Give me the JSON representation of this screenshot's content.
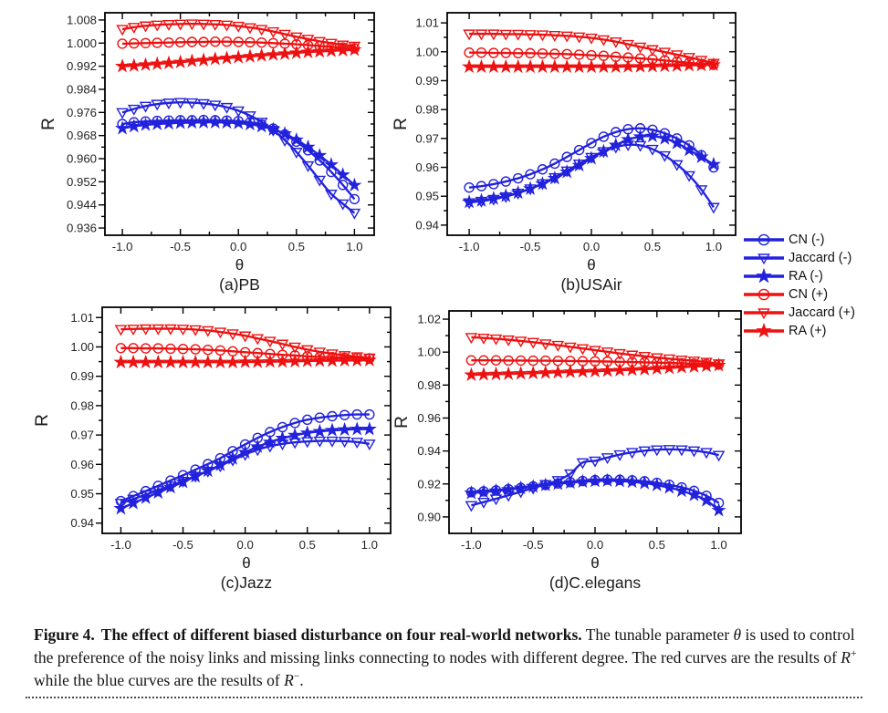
{
  "colors": {
    "blue": "#2222dd",
    "red": "#ee1111",
    "axis": "#000000",
    "tick_text": "#242424"
  },
  "legend": {
    "items": [
      {
        "label": "CN (-)",
        "color": "blue",
        "marker": "circle"
      },
      {
        "label": "Jaccard (-)",
        "color": "blue",
        "marker": "triangle"
      },
      {
        "label": "RA (-)",
        "color": "blue",
        "marker": "star"
      },
      {
        "label": "CN (+)",
        "color": "red",
        "marker": "circle"
      },
      {
        "label": "Jaccard (+)",
        "color": "red",
        "marker": "triangle"
      },
      {
        "label": "RA (+)",
        "color": "red",
        "marker": "star"
      }
    ]
  },
  "chart_data": [
    {
      "type": "line",
      "title": "(a)PB",
      "xlabel": "θ",
      "ylabel": "R",
      "xlim": [
        -1.15,
        1.17
      ],
      "ylim": [
        0.9335,
        1.0105
      ],
      "xtick_labels": [
        "-1.0",
        "-0.5",
        "0.0",
        "0.5",
        "1.0"
      ],
      "ytick_labels": [
        "0.936",
        "0.944",
        "0.952",
        "0.960",
        "0.968",
        "0.976",
        "0.984",
        "0.992",
        "1.000",
        "1.008"
      ],
      "x": [
        -1.0,
        -0.9,
        -0.8,
        -0.7,
        -0.6,
        -0.5,
        -0.4,
        -0.3,
        -0.2,
        -0.1,
        0.0,
        0.1,
        0.2,
        0.3,
        0.4,
        0.5,
        0.6,
        0.7,
        0.8,
        0.9,
        1.0
      ],
      "series": [
        {
          "name": "CN (-)",
          "color": "blue",
          "marker": "circle",
          "y": [
            0.972,
            0.9726,
            0.9729,
            0.9731,
            0.9732,
            0.9733,
            0.9733,
            0.9734,
            0.9733,
            0.9732,
            0.973,
            0.9726,
            0.9718,
            0.9704,
            0.9684,
            0.9659,
            0.9629,
            0.9594,
            0.9554,
            0.9509,
            0.946
          ]
        },
        {
          "name": "Jaccard (-)",
          "color": "blue",
          "marker": "triangle",
          "y": [
            0.976,
            0.9772,
            0.9782,
            0.9789,
            0.9793,
            0.9795,
            0.9794,
            0.9791,
            0.9786,
            0.9778,
            0.9766,
            0.9749,
            0.9727,
            0.9699,
            0.9664,
            0.9623,
            0.9576,
            0.9526,
            0.9478,
            0.9444,
            0.9412
          ]
        },
        {
          "name": "RA (-)",
          "color": "blue",
          "marker": "star",
          "y": [
            0.9705,
            0.9712,
            0.9717,
            0.972,
            0.9722,
            0.9724,
            0.9725,
            0.9726,
            0.9726,
            0.9725,
            0.9723,
            0.9719,
            0.9712,
            0.9701,
            0.9686,
            0.9665,
            0.964,
            0.9611,
            0.9579,
            0.9544,
            0.9508
          ]
        },
        {
          "name": "CN (+)",
          "color": "red",
          "marker": "circle",
          "y": [
            0.9998,
            0.9999,
            1.0,
            1.0001,
            1.0002,
            1.0003,
            1.0004,
            1.0004,
            1.0005,
            1.0005,
            1.0004,
            1.0003,
            1.0002,
            1.0,
            0.9998,
            0.9996,
            0.9993,
            0.999,
            0.9987,
            0.9985,
            0.9982
          ]
        },
        {
          "name": "Jaccard (+)",
          "color": "red",
          "marker": "triangle",
          "y": [
            1.0048,
            1.0055,
            1.006,
            1.0063,
            1.0065,
            1.0066,
            1.0067,
            1.0066,
            1.0065,
            1.0063,
            1.0059,
            1.0054,
            1.0048,
            1.004,
            1.0031,
            1.0022,
            1.0014,
            1.0006,
            1.0,
            0.9994,
            0.999
          ]
        },
        {
          "name": "RA (+)",
          "color": "red",
          "marker": "star",
          "y": [
            0.992,
            0.9922,
            0.9925,
            0.9928,
            0.9931,
            0.9934,
            0.9938,
            0.9941,
            0.9945,
            0.9948,
            0.9951,
            0.9954,
            0.9957,
            0.996,
            0.9963,
            0.9966,
            0.9969,
            0.9971,
            0.9973,
            0.9975,
            0.9977
          ]
        }
      ]
    },
    {
      "type": "line",
      "title": "(b)USAir",
      "xlabel": "θ",
      "ylabel": "R",
      "xlim": [
        -1.18,
        1.18
      ],
      "ylim": [
        0.9365,
        1.0135
      ],
      "xtick_labels": [
        "-1.0",
        "-0.5",
        "0.0",
        "0.5",
        "1.0"
      ],
      "ytick_labels": [
        "0.94",
        "0.95",
        "0.96",
        "0.97",
        "0.98",
        "0.99",
        "1.00",
        "1.01"
      ],
      "x": [
        -1.0,
        -0.9,
        -0.8,
        -0.7,
        -0.6,
        -0.5,
        -0.4,
        -0.3,
        -0.2,
        -0.1,
        0.0,
        0.1,
        0.2,
        0.3,
        0.4,
        0.5,
        0.6,
        0.7,
        0.8,
        0.9,
        1.0
      ],
      "series": [
        {
          "name": "CN (-)",
          "color": "blue",
          "marker": "circle",
          "y": [
            0.953,
            0.9535,
            0.9542,
            0.9551,
            0.9562,
            0.9576,
            0.9593,
            0.9613,
            0.9636,
            0.966,
            0.9684,
            0.9706,
            0.9722,
            0.9732,
            0.9735,
            0.973,
            0.9718,
            0.97,
            0.9676,
            0.9642,
            0.96
          ]
        },
        {
          "name": "Jaccard (-)",
          "color": "blue",
          "marker": "triangle",
          "y": [
            0.9478,
            0.9483,
            0.949,
            0.9499,
            0.9511,
            0.9526,
            0.9544,
            0.9565,
            0.9588,
            0.9612,
            0.9635,
            0.9655,
            0.967,
            0.9678,
            0.9676,
            0.9663,
            0.9641,
            0.961,
            0.9572,
            0.9523,
            0.9462
          ]
        },
        {
          "name": "RA (-)",
          "color": "blue",
          "marker": "star",
          "y": [
            0.948,
            0.9485,
            0.9492,
            0.9501,
            0.9512,
            0.9526,
            0.9543,
            0.9562,
            0.9584,
            0.9607,
            0.9631,
            0.9655,
            0.9677,
            0.9696,
            0.9706,
            0.9708,
            0.97,
            0.9684,
            0.966,
            0.9636,
            0.961
          ]
        },
        {
          "name": "CN (+)",
          "color": "red",
          "marker": "circle",
          "y": [
            0.9997,
            0.9997,
            0.9996,
            0.9996,
            0.9995,
            0.9995,
            0.9994,
            0.9993,
            0.9992,
            0.999,
            0.9988,
            0.9986,
            0.9983,
            0.998,
            0.9977,
            0.9974,
            0.997,
            0.9966,
            0.9962,
            0.9958,
            0.9955
          ]
        },
        {
          "name": "Jaccard (+)",
          "color": "red",
          "marker": "triangle",
          "y": [
            1.0062,
            1.0062,
            1.0062,
            1.0061,
            1.0061,
            1.006,
            1.0059,
            1.0057,
            1.0055,
            1.0052,
            1.0048,
            1.0042,
            1.0035,
            1.0026,
            1.0017,
            1.0008,
            0.9999,
            0.999,
            0.9981,
            0.9971,
            0.9961
          ]
        },
        {
          "name": "RA (+)",
          "color": "red",
          "marker": "star",
          "y": [
            0.9948,
            0.9948,
            0.9948,
            0.9948,
            0.9948,
            0.9948,
            0.9948,
            0.9948,
            0.9948,
            0.9948,
            0.9948,
            0.9948,
            0.9948,
            0.9949,
            0.9949,
            0.995,
            0.9951,
            0.9952,
            0.9953,
            0.9954,
            0.9955
          ]
        }
      ]
    },
    {
      "type": "line",
      "title": "(c)Jazz",
      "xlabel": "θ",
      "ylabel": "R",
      "xlim": [
        -1.15,
        1.17
      ],
      "ylim": [
        0.9365,
        1.0135
      ],
      "xtick_labels": [
        "-1.0",
        "-0.5",
        "0.0",
        "0.5",
        "1.0"
      ],
      "ytick_labels": [
        "0.94",
        "0.95",
        "0.96",
        "0.97",
        "0.98",
        "0.99",
        "1.00",
        "1.01"
      ],
      "x": [
        -1.0,
        -0.9,
        -0.8,
        -0.7,
        -0.6,
        -0.5,
        -0.4,
        -0.3,
        -0.2,
        -0.1,
        0.0,
        0.1,
        0.2,
        0.3,
        0.4,
        0.5,
        0.6,
        0.7,
        0.8,
        0.9,
        1.0
      ],
      "series": [
        {
          "name": "CN (-)",
          "color": "blue",
          "marker": "circle",
          "y": [
            0.9475,
            0.9492,
            0.9509,
            0.9527,
            0.9545,
            0.9563,
            0.9582,
            0.9601,
            0.9621,
            0.9645,
            0.9668,
            0.969,
            0.971,
            0.9727,
            0.9741,
            0.9752,
            0.9759,
            0.9764,
            0.9768,
            0.977,
            0.977
          ]
        },
        {
          "name": "Jaccard (-)",
          "color": "blue",
          "marker": "triangle",
          "y": [
            0.9468,
            0.9482,
            0.9497,
            0.9512,
            0.9527,
            0.9543,
            0.956,
            0.9577,
            0.9595,
            0.9615,
            0.9634,
            0.965,
            0.9662,
            0.967,
            0.9675,
            0.9678,
            0.968,
            0.968,
            0.9679,
            0.9676,
            0.967
          ]
        },
        {
          "name": "RA (-)",
          "color": "blue",
          "marker": "star",
          "y": [
            0.945,
            0.9468,
            0.9486,
            0.9504,
            0.9522,
            0.954,
            0.9559,
            0.9578,
            0.9598,
            0.962,
            0.9641,
            0.966,
            0.9676,
            0.9689,
            0.9699,
            0.9707,
            0.9712,
            0.9716,
            0.9718,
            0.972,
            0.972
          ]
        },
        {
          "name": "CN (+)",
          "color": "red",
          "marker": "circle",
          "y": [
            0.9996,
            0.9996,
            0.9995,
            0.9995,
            0.9994,
            0.9993,
            0.9992,
            0.999,
            0.9988,
            0.9985,
            0.9982,
            0.9979,
            0.9976,
            0.9973,
            0.9971,
            0.9968,
            0.9966,
            0.9965,
            0.9963,
            0.9962,
            0.9961
          ]
        },
        {
          "name": "Jaccard (+)",
          "color": "red",
          "marker": "triangle",
          "y": [
            1.006,
            1.0061,
            1.0062,
            1.0062,
            1.0062,
            1.0061,
            1.0059,
            1.0056,
            1.0051,
            1.0045,
            1.0038,
            1.0029,
            1.002,
            1.001,
            1.0,
            0.9991,
            0.9983,
            0.9977,
            0.9971,
            0.9967,
            0.9963
          ]
        },
        {
          "name": "RA (+)",
          "color": "red",
          "marker": "star",
          "y": [
            0.9948,
            0.9948,
            0.9948,
            0.9948,
            0.9948,
            0.9948,
            0.9948,
            0.9948,
            0.9948,
            0.9948,
            0.9949,
            0.9949,
            0.995,
            0.995,
            0.9951,
            0.9952,
            0.9953,
            0.9953,
            0.9954,
            0.9954,
            0.9955
          ]
        }
      ]
    },
    {
      "type": "line",
      "title": "(d)C.elegans",
      "xlabel": "θ",
      "ylabel": "R",
      "xlim": [
        -1.18,
        1.18
      ],
      "ylim": [
        0.89,
        1.025
      ],
      "xtick_labels": [
        "-1.0",
        "-0.5",
        "0.0",
        "0.5",
        "1.0"
      ],
      "ytick_labels": [
        "0.90",
        "0.92",
        "0.94",
        "0.96",
        "0.98",
        "1.00",
        "1.02"
      ],
      "x": [
        -1.0,
        -0.9,
        -0.8,
        -0.7,
        -0.6,
        -0.5,
        -0.4,
        -0.3,
        -0.2,
        -0.1,
        0.0,
        0.1,
        0.2,
        0.3,
        0.4,
        0.5,
        0.6,
        0.7,
        0.8,
        0.9,
        1.0
      ],
      "series": [
        {
          "name": "CN (-)",
          "color": "blue",
          "marker": "circle",
          "y": [
            0.915,
            0.9155,
            0.9161,
            0.9168,
            0.9176,
            0.9185,
            0.9194,
            0.9203,
            0.9211,
            0.9218,
            0.9223,
            0.9226,
            0.9225,
            0.9222,
            0.9216,
            0.9207,
            0.9195,
            0.9179,
            0.9158,
            0.9128,
            0.9085
          ]
        },
        {
          "name": "Jaccard (-)",
          "color": "blue",
          "marker": "triangle",
          "y": [
            0.907,
            0.909,
            0.911,
            0.9131,
            0.9153,
            0.9175,
            0.9198,
            0.9222,
            0.9262,
            0.933,
            0.934,
            0.936,
            0.9378,
            0.9392,
            0.9402,
            0.9408,
            0.941,
            0.9408,
            0.9402,
            0.9392,
            0.9375
          ]
        },
        {
          "name": "RA (-)",
          "color": "blue",
          "marker": "star",
          "y": [
            0.9145,
            0.9151,
            0.9158,
            0.9166,
            0.9175,
            0.9184,
            0.9193,
            0.9201,
            0.9208,
            0.9214,
            0.9218,
            0.922,
            0.9218,
            0.9213,
            0.9205,
            0.9193,
            0.9178,
            0.9158,
            0.9133,
            0.91,
            0.904
          ]
        },
        {
          "name": "CN (+)",
          "color": "red",
          "marker": "circle",
          "y": [
            0.995,
            0.995,
            0.995,
            0.9949,
            0.9949,
            0.9948,
            0.9948,
            0.9947,
            0.9946,
            0.9945,
            0.9944,
            0.9943,
            0.9941,
            0.994,
            0.9938,
            0.9936,
            0.9934,
            0.9932,
            0.993,
            0.9927,
            0.9925
          ]
        },
        {
          "name": "Jaccard (+)",
          "color": "red",
          "marker": "triangle",
          "y": [
            1.009,
            1.0086,
            1.0081,
            1.0075,
            1.0068,
            1.006,
            1.0051,
            1.0042,
            1.0032,
            1.0022,
            1.0012,
            1.0002,
            0.9992,
            0.9983,
            0.9975,
            0.9967,
            0.996,
            0.9953,
            0.9947,
            0.994,
            0.993
          ]
        },
        {
          "name": "RA (+)",
          "color": "red",
          "marker": "star",
          "y": [
            0.9862,
            0.9864,
            0.9866,
            0.9868,
            0.987,
            0.9872,
            0.9875,
            0.9877,
            0.988,
            0.9882,
            0.9884,
            0.9887,
            0.989,
            0.9893,
            0.9896,
            0.99,
            0.9904,
            0.9908,
            0.9912,
            0.9916,
            0.992
          ]
        }
      ]
    }
  ],
  "caption": {
    "bold1": "Figure 4.",
    "bold2": "The effect of different biased disturbance on four real-world networks.",
    "n1": " The tunable parameter ",
    "theta": "θ",
    "n2": " is used to control the preference of the noisy links and missing links connecting to nodes with different degree. The red curves are the results of ",
    "r_plus_base": "R",
    "r_plus_sup": "+",
    "n3": " while the blue curves are the results of ",
    "r_minus_base": "R",
    "r_minus_sup": "−",
    "n4": "."
  }
}
